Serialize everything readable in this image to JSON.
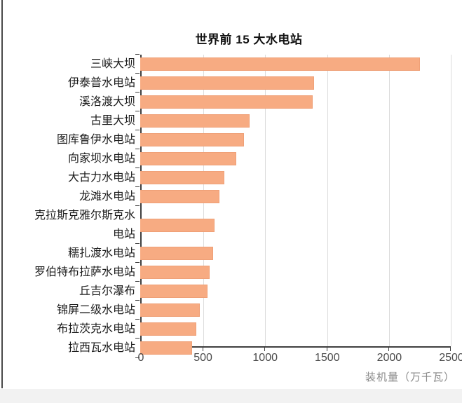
{
  "window": {
    "left_border_color": "#4a4a4a",
    "bottom_strip_color": "#f2f2f2",
    "background": "#ffffff"
  },
  "chart_data": {
    "type": "bar",
    "orientation": "horizontal",
    "title": "世界前 15 大水电站",
    "xlabel": "装机量（万千瓦）",
    "categories": [
      "三峡大坝",
      "伊泰普水电站",
      "溪洛渡大坝",
      "古里大坝",
      "图库鲁伊水电站",
      "向家坝水电站",
      "大古力水电站",
      "龙滩水电站",
      "克拉斯克雅尔斯克水电站",
      "糯扎渡水电站",
      "罗伯特布拉萨水电站",
      "丘吉尔瀑布",
      "锦屏二级水电站",
      "布拉茨克水电站",
      "拉西瓦水电站"
    ],
    "values": [
      2250,
      1400,
      1386,
      880,
      837,
      775,
      680,
      640,
      600,
      585,
      560,
      543,
      480,
      450,
      420
    ],
    "xlim": [
      0,
      2500
    ],
    "xticks": [
      0,
      500,
      1000,
      1500,
      2000,
      2500
    ],
    "grid": true,
    "legend": false,
    "colors": {
      "bar_fill": "#f7ab82",
      "bar_border": "#efa077",
      "gridline": "#dcdcdc",
      "axis": "#3f3f3f",
      "tick_label": "#4a4a4a",
      "category_label": "#1a1a1a",
      "title": "#111111",
      "xlabel": "#8a8a8a"
    }
  }
}
